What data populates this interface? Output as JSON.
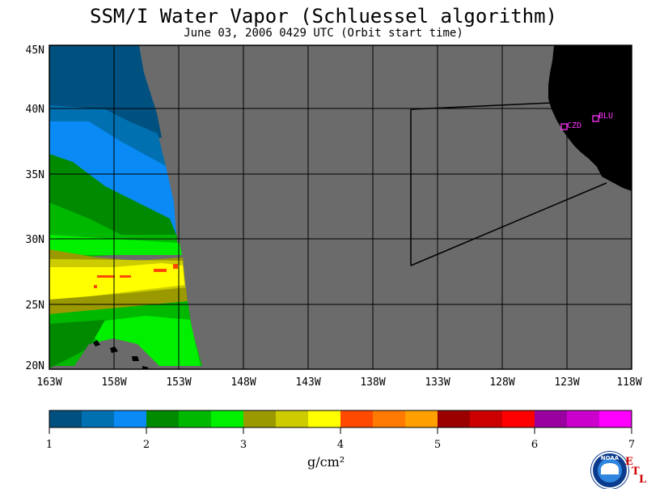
{
  "title": "SSM/I Water Vapor (Schluessel algorithm)",
  "subtitle": "June 03, 2006  0429 UTC  (Orbit start time)",
  "lat_labels": [
    "45N",
    "40N",
    "35N",
    "30N",
    "25N",
    "20N"
  ],
  "lon_labels": [
    "163W",
    "158W",
    "153W",
    "148W",
    "143W",
    "138W",
    "133W",
    "128W",
    "123W",
    "118W"
  ],
  "stations": [
    {
      "label": "CZD"
    },
    {
      "label": "BLU"
    }
  ],
  "colorbar": {
    "colors": [
      "#005080",
      "#0070b0",
      "#0a8af5",
      "#008a00",
      "#00b800",
      "#00f000",
      "#9a9a00",
      "#cccc00",
      "#ffff00",
      "#ff4a00",
      "#ff7a00",
      "#ffa000",
      "#9a0000",
      "#cc0000",
      "#ff0000",
      "#9a00a0",
      "#cc00cc",
      "#ff00ff"
    ],
    "tick_labels": [
      "1",
      "2",
      "3",
      "4",
      "5",
      "6",
      "7"
    ],
    "unit": "g/cm²"
  },
  "colors": {
    "no_data": "#6b6b6b",
    "land": "#000000",
    "station": "#ff33ff"
  },
  "logo": {
    "text": "NOAA",
    "etl": [
      "E",
      "T",
      "L"
    ]
  }
}
